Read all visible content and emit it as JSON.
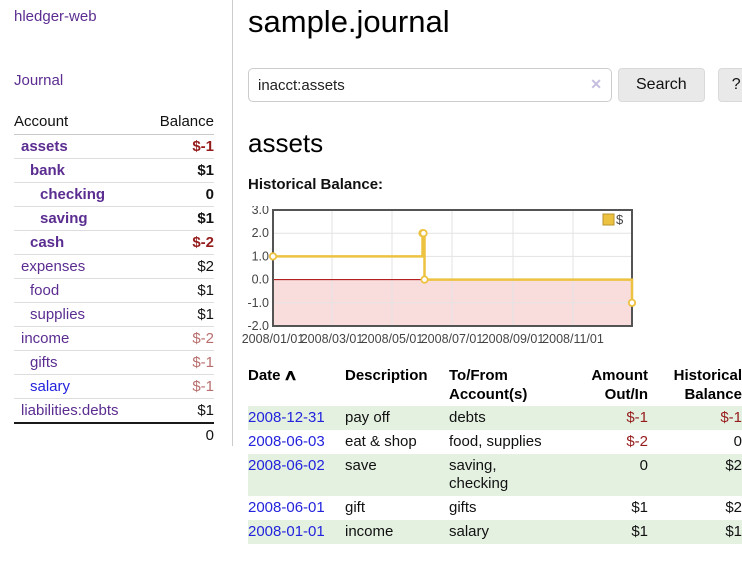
{
  "sidebar": {
    "brand": "hledger-web",
    "journal_link": "Journal",
    "accounts_table": {
      "headers": {
        "account": "Account",
        "balance": "Balance"
      },
      "rows": [
        {
          "label": "assets",
          "level": 0,
          "bold": true,
          "balance": "$-1",
          "balance_style": "neg",
          "link_style": "purple"
        },
        {
          "label": "bank",
          "level": 1,
          "bold": true,
          "balance": "$1",
          "balance_style": "",
          "link_style": "purple"
        },
        {
          "label": "checking",
          "level": 2,
          "bold": true,
          "balance": "0",
          "balance_style": "",
          "link_style": "purple"
        },
        {
          "label": "saving",
          "level": 2,
          "bold": true,
          "balance": "$1",
          "balance_style": "",
          "link_style": "purple"
        },
        {
          "label": "cash",
          "level": 1,
          "bold": true,
          "balance": "$-2",
          "balance_style": "neg",
          "link_style": "purple"
        },
        {
          "label": "expenses",
          "level": 0,
          "bold": false,
          "balance": "$2",
          "balance_style": "",
          "link_style": "purple"
        },
        {
          "label": "food",
          "level": 1,
          "bold": false,
          "balance": "$1",
          "balance_style": "",
          "link_style": "purple"
        },
        {
          "label": "supplies",
          "level": 1,
          "bold": false,
          "balance": "$1",
          "balance_style": "",
          "link_style": "purple"
        },
        {
          "label": "income",
          "level": 0,
          "bold": false,
          "balance": "$-2",
          "balance_style": "neg-soft",
          "link_style": "purple"
        },
        {
          "label": "gifts",
          "level": 1,
          "bold": false,
          "balance": "$-1",
          "balance_style": "neg-soft",
          "link_style": "purple"
        },
        {
          "label": "salary",
          "level": 1,
          "bold": false,
          "balance": "$-1",
          "balance_style": "neg-soft",
          "link_style": "blue"
        },
        {
          "label": "liabilities:debts",
          "level": 0,
          "bold": false,
          "balance": "$1",
          "balance_style": "",
          "link_style": "purple"
        }
      ],
      "total": "0"
    }
  },
  "main": {
    "title": "sample.journal",
    "search": {
      "value": "inacct:assets",
      "clear_icon": "✕",
      "button_label": "Search",
      "help_label": "?"
    },
    "account_heading": "assets",
    "chart_label": "Historical Balance:"
  },
  "chart_data": {
    "type": "line",
    "step": true,
    "title": "Historical Balance",
    "series": [
      {
        "name": "$",
        "points": [
          [
            "2008-01-01",
            1
          ],
          [
            "2008-06-01",
            2
          ],
          [
            "2008-06-02",
            2
          ],
          [
            "2008-06-03",
            0
          ],
          [
            "2008-12-31",
            -1
          ]
        ]
      }
    ],
    "xlim": [
      "2008-01-01",
      "2008-12-31"
    ],
    "ylim": [
      -2,
      3
    ],
    "yticks": [
      3,
      2,
      1,
      0,
      -1,
      -2
    ],
    "ytick_labels": [
      "3.0",
      "2.0",
      "1.0",
      "0.0",
      "-1.0",
      "-2.0"
    ],
    "xticks": [
      "2008-01-01",
      "2008-03-01",
      "2008-05-01",
      "2008-07-01",
      "2008-09-01",
      "2008-11-01"
    ],
    "xtick_labels": [
      "2008/01/01",
      "2008/03/01",
      "2008/05/01",
      "2008/07/01",
      "2008/09/01",
      "2008/11/01"
    ],
    "grid": true,
    "legend": {
      "label": "$",
      "position": "top-right"
    },
    "colors": {
      "line": "#edc240",
      "legend_box_border": "#b8962e",
      "negative_fill": "#f9dcdc",
      "zero_line": "#aa0000",
      "grid": "#e3e3e3",
      "border": "#545454",
      "axis_text": "#444444"
    }
  },
  "register": {
    "headers": {
      "date": "Date",
      "description": "Description",
      "accounts": "To/From Account(s)",
      "amount": "Amount Out/In",
      "balance": "Historical Balance"
    },
    "sort_icon": "∧",
    "rows": [
      {
        "date": "2008-12-31",
        "description": "pay off",
        "accounts": "debts",
        "amount": "$-1",
        "amount_style": "neg",
        "balance": "$-1",
        "balance_style": "neg"
      },
      {
        "date": "2008-06-03",
        "description": "eat & shop",
        "accounts": "food, supplies",
        "amount": "$-2",
        "amount_style": "neg",
        "balance": "0",
        "balance_style": ""
      },
      {
        "date": "2008-06-02",
        "description": "save",
        "accounts": "saving, checking",
        "amount": "0",
        "amount_style": "",
        "balance": "$2",
        "balance_style": ""
      },
      {
        "date": "2008-06-01",
        "description": "gift",
        "accounts": "gifts",
        "amount": "$1",
        "amount_style": "",
        "balance": "$2",
        "balance_style": ""
      },
      {
        "date": "2008-01-01",
        "description": "income",
        "accounts": "salary",
        "amount": "$1",
        "amount_style": "",
        "balance": "$1",
        "balance_style": ""
      }
    ]
  },
  "colors": {
    "link_purple": "#5b2d91",
    "link_blue": "#2323dd",
    "negative_strong": "#961c1c",
    "negative_soft": "#b96e6e",
    "row_stripe_green": "#e4f1e1",
    "button_bg": "#e9e9e9"
  }
}
